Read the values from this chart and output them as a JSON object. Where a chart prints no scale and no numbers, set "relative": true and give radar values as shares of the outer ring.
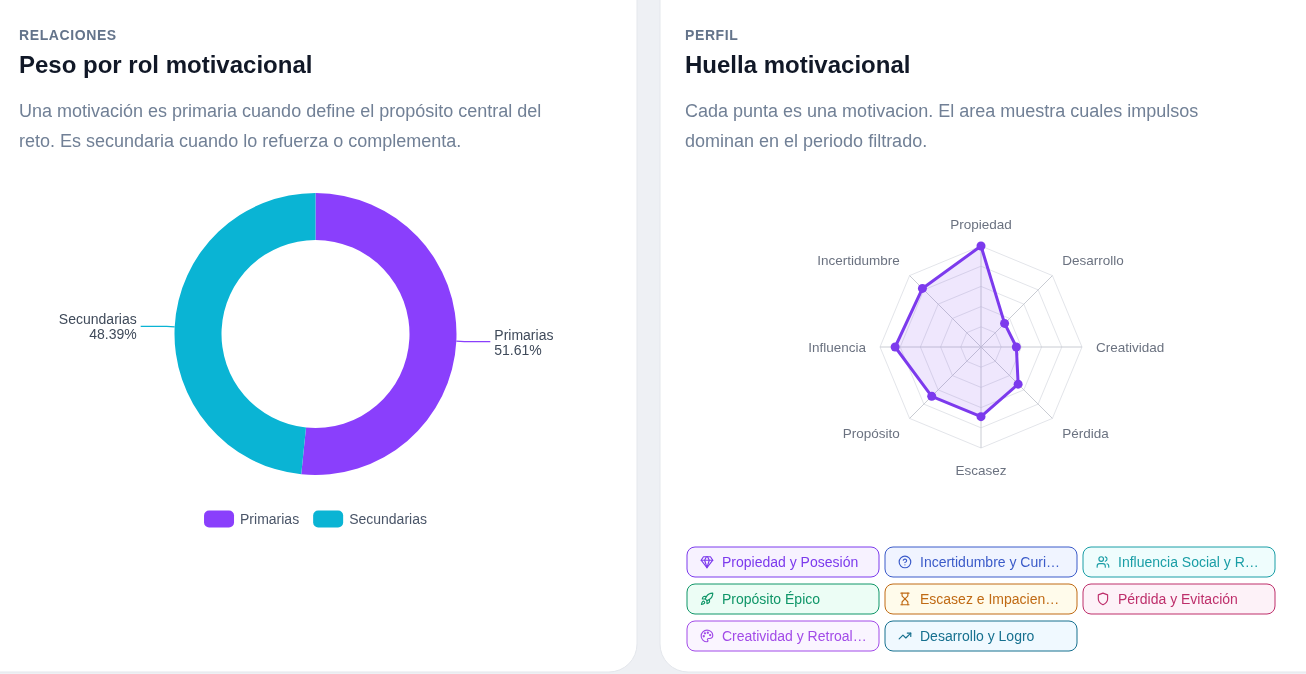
{
  "chart_data": [
    {
      "type": "donut",
      "title": "Peso por rol motivacional",
      "subtitle": "Una motivación es primaria cuando define el propósito central del reto. Es secundaria cuando lo refuerza o complementa.",
      "annotations": [
        "RELACIONES"
      ],
      "categories": [
        "Primarias",
        "Secundarias"
      ],
      "values": [
        51.61,
        48.39
      ],
      "colors": [
        "#8a3ffc",
        "#0ab4d4"
      ],
      "value_labels": [
        "51.61%",
        "48.39%"
      ],
      "legend": "bottom"
    },
    {
      "type": "radar",
      "title": "Huella motivacional",
      "subtitle": "Cada punta es una motivacion. El area muestra cuales impulsos dominan en el periodo filtrado.",
      "annotations": [
        "PERFIL",
        "Propiedad y Posesión",
        "Incertidumbre y Curi…",
        "Influencia Social y R…",
        "Propósito Épico",
        "Escasez e Impacien…",
        "Pérdida y Evitación",
        "Creatividad y Retroal…",
        "Desarrollo y Logro"
      ],
      "categories": [
        "Propiedad",
        "Desarrollo",
        "Creatividad",
        "Pérdida",
        "Escasez",
        "Propósito",
        "Influencia",
        "Incertidumbre"
      ],
      "series": [
        {
          "color": "#7c3aed",
          "values": [
            1.0,
            0.33,
            0.35,
            0.52,
            0.69,
            0.69,
            0.85,
            0.82
          ]
        }
      ],
      "relative": true,
      "grid": true,
      "marker": "circle"
    }
  ]
}
